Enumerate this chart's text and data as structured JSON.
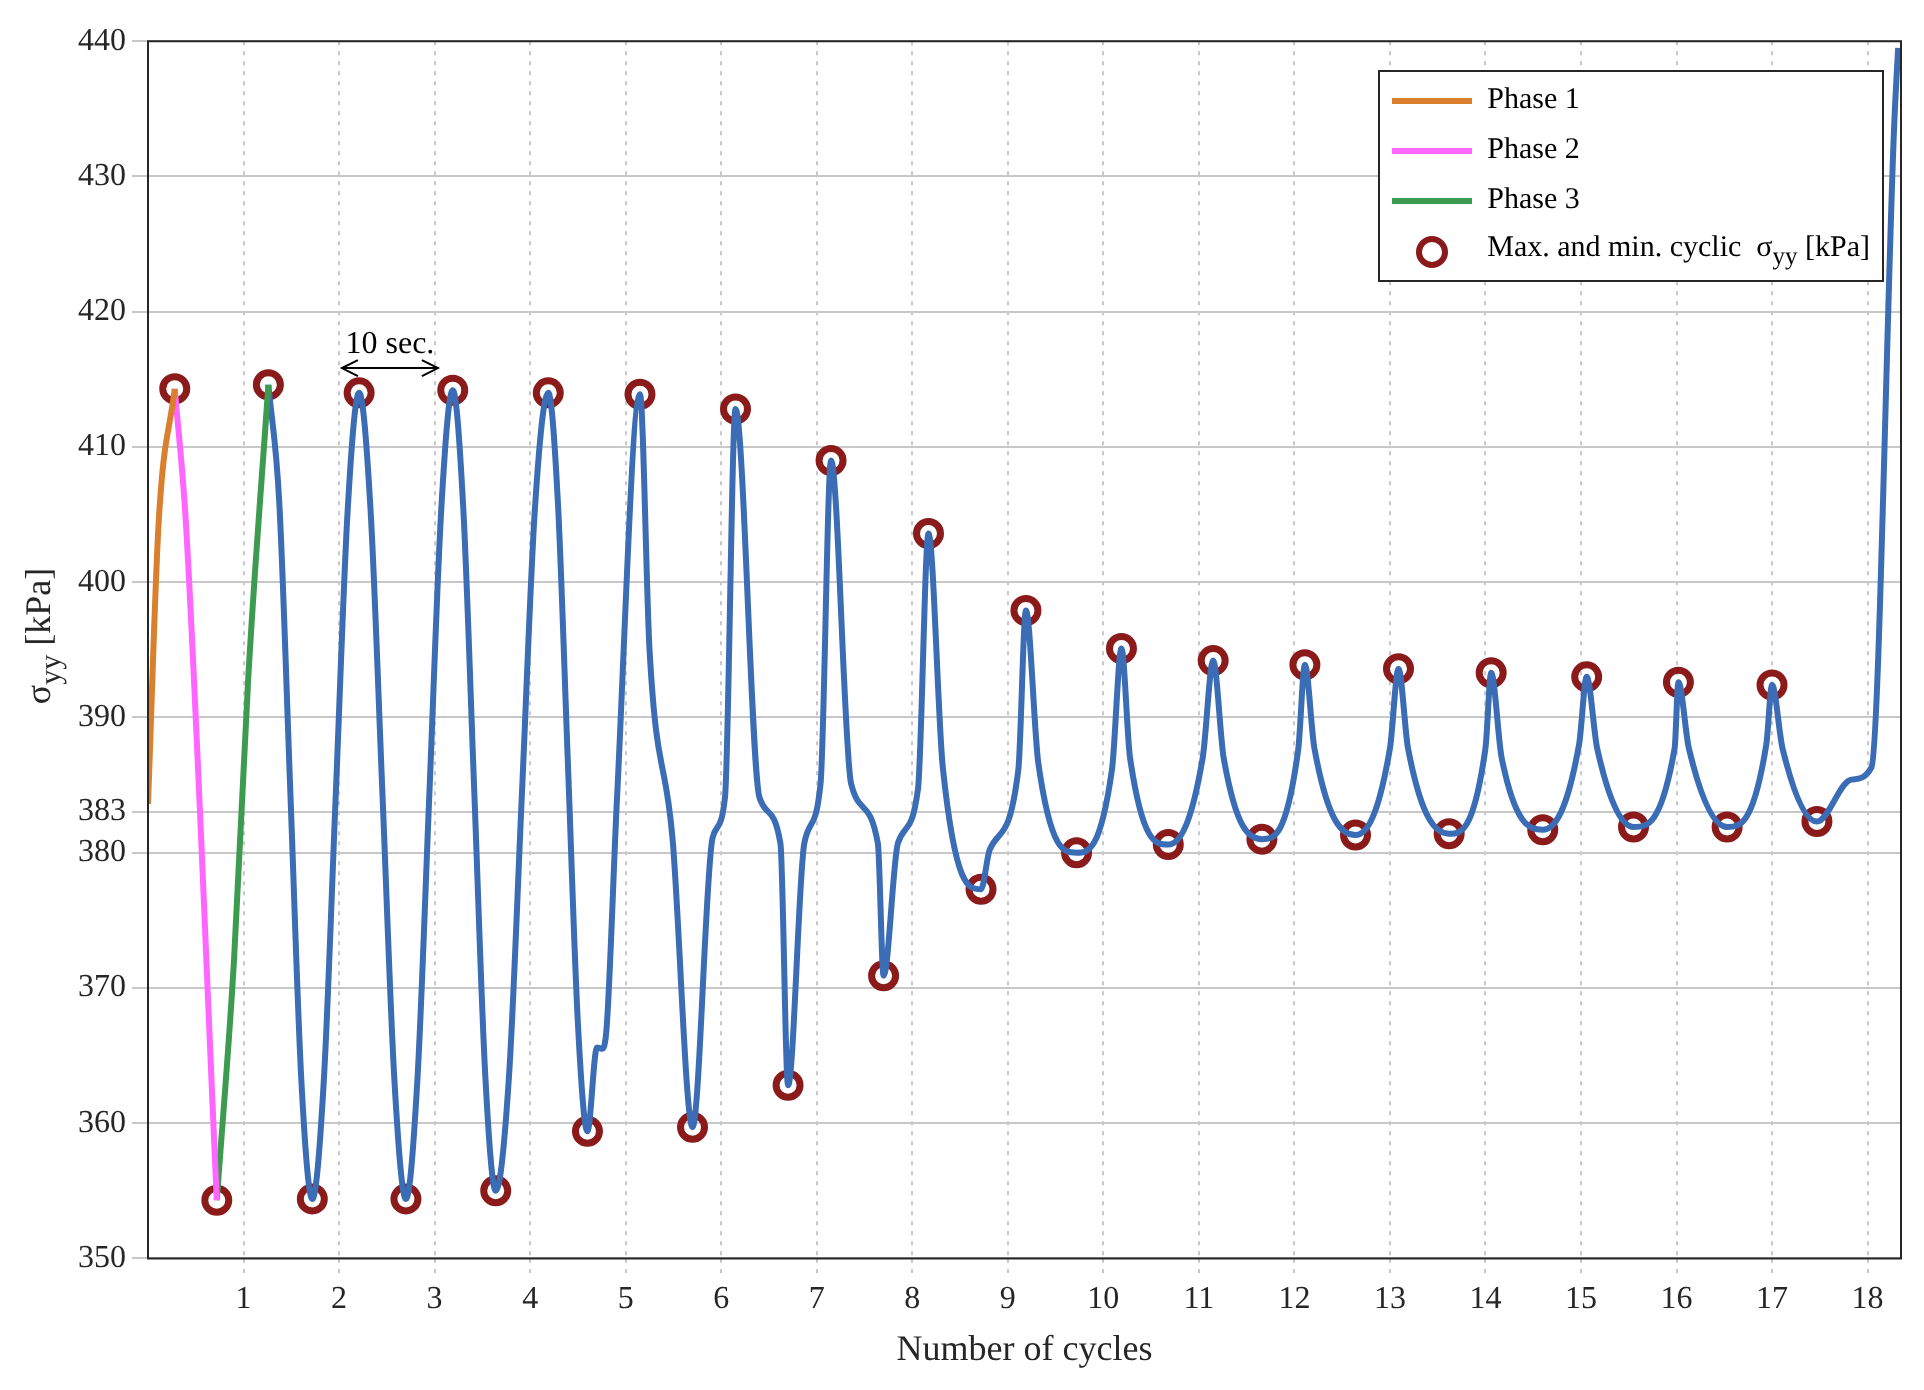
{
  "chart_data": {
    "type": "line",
    "xlabel": "Number of cycles",
    "ylabel": "σ$_{yy}$ [kPa]",
    "xlim": [
      0,
      18.35
    ],
    "ylim": [
      350,
      440
    ],
    "xticks": [
      1,
      2,
      3,
      4,
      5,
      6,
      7,
      8,
      9,
      10,
      11,
      12,
      13,
      14,
      15,
      16,
      17,
      18
    ],
    "yticks": [
      350,
      360,
      370,
      380,
      383,
      390,
      400,
      410,
      420,
      430,
      440
    ],
    "grid": true,
    "legend": "top right",
    "marker": "none",
    "line_style": "solid",
    "annotations": [
      "10 sec."
    ],
    "series": [
      {
        "name": "Phase 1",
        "color": "#d97f2e",
        "x": [
          0,
          0.11,
          0.28
        ],
        "values": [
          383.6,
          404.2,
          414.3
        ]
      },
      {
        "name": "Phase 2",
        "color": "#ff66ff",
        "x": [
          0.28,
          0.4,
          0.72
        ],
        "values": [
          414.3,
          404,
          354.3
        ]
      },
      {
        "name": "Phase 3",
        "color": "#3d9b50",
        "x": [
          0.72,
          0.9,
          1.05,
          1.26
        ],
        "values": [
          354.3,
          372,
          393,
          414.6
        ]
      },
      {
        "color": "#3a6db5",
        "x": [
          1.26,
          1.375,
          1.49,
          1.605,
          1.72,
          1.84,
          1.965,
          2.09,
          2.21,
          2.33,
          2.455,
          2.58,
          2.7,
          2.82,
          2.945,
          3.07,
          3.19,
          3.3,
          3.415,
          3.53,
          3.64,
          3.78,
          3.915,
          4.05,
          4.19,
          4.29,
          4.395,
          4.5,
          4.6,
          4.7,
          4.75,
          4.8,
          4.91,
          5.15,
          5.25,
          5.49,
          5.7,
          5.91,
          6.04,
          6.15,
          6.4,
          6.62,
          6.7,
          6.87,
          7.04,
          7.15,
          7.36,
          7.64,
          7.7,
          7.85,
          8.06,
          8.17,
          8.32,
          8.72,
          8.81,
          9.11,
          9.19,
          9.32,
          9.72,
          10.09,
          10.19,
          10.28,
          10.68,
          11.04,
          11.15,
          11.26,
          11.66,
          12.04,
          12.11,
          12.21,
          12.64,
          13.0,
          13.09,
          13.19,
          13.62,
          14.0,
          14.06,
          14.17,
          14.6,
          14.98,
          15.06,
          15.17,
          15.55,
          15.98,
          16.02,
          16.13,
          16.53,
          16.94,
          17.0,
          17.11,
          17.47,
          17.83,
          18.04,
          18.28,
          18.32
        ],
        "values": [
          414.6,
          405.8,
          384.5,
          363.2,
          354.4,
          363.1,
          384.2,
          405.3,
          414.0,
          405.3,
          384.2,
          363.1,
          354.4,
          363.2,
          384.3,
          405.4,
          414.2,
          405.5,
          384.6,
          363.6,
          355.0,
          363.6,
          384.5,
          405.4,
          414.0,
          406,
          386.7,
          367.4,
          359.4,
          365.6,
          365.5,
          367,
          384.1,
          413.9,
          395,
          381.1,
          359.7,
          381.1,
          384.1,
          412.8,
          384.1,
          380.7,
          362.8,
          380.7,
          385.1,
          409.0,
          385.1,
          380.7,
          370.9,
          380.7,
          384.7,
          403.6,
          386.3,
          377.3,
          380.2,
          386.1,
          397.9,
          386.6,
          380.0,
          386.1,
          395.1,
          387,
          380.6,
          387,
          394.2,
          387,
          381.0,
          387.6,
          393.9,
          387.7,
          381.3,
          387.7,
          393.6,
          387.7,
          381.4,
          387.7,
          393.3,
          387,
          381.7,
          388,
          393.0,
          387.7,
          381.9,
          387.7,
          392.6,
          387.7,
          381.9,
          388,
          392.4,
          387.7,
          382.3,
          385.4,
          386.3,
          434,
          439.5
        ]
      },
      {
        "name": "Max. and min. cyclic  σ$_{yy}$ [kPa]",
        "color": "#8b1a1a",
        "type": "scatter",
        "marker": "circle",
        "x": [
          0.28,
          1.26,
          2.21,
          3.19,
          4.19,
          5.15,
          6.15,
          7.15,
          8.17,
          9.19,
          10.19,
          11.15,
          12.11,
          13.09,
          14.06,
          15.06,
          16.02,
          17.0,
          0.72,
          1.72,
          2.7,
          3.64,
          4.6,
          5.7,
          6.7,
          7.7,
          8.72,
          9.72,
          10.68,
          11.66,
          12.64,
          13.62,
          14.6,
          15.55,
          16.53,
          17.47
        ],
        "values": [
          414.3,
          414.6,
          414.0,
          414.2,
          414.0,
          413.9,
          412.8,
          409.0,
          403.6,
          397.9,
          395.1,
          394.2,
          393.9,
          393.6,
          393.3,
          393.0,
          392.6,
          392.4,
          354.3,
          354.4,
          354.4,
          355.0,
          359.4,
          359.7,
          362.8,
          370.9,
          377.3,
          380.0,
          380.6,
          381.0,
          381.3,
          381.4,
          381.7,
          381.9,
          381.9,
          382.3
        ]
      }
    ]
  }
}
